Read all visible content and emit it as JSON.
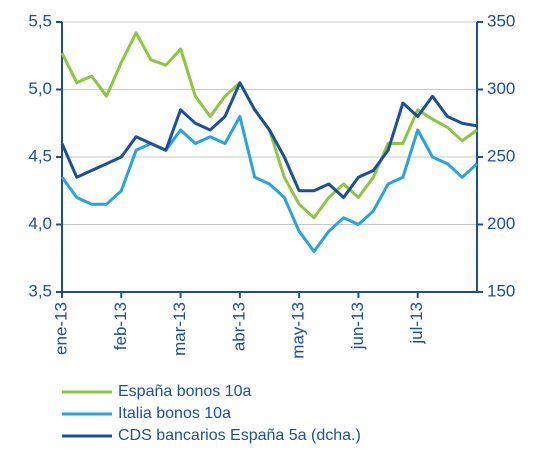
{
  "chart_data": {
    "type": "line",
    "categories": [
      "ene-13",
      null,
      null,
      null,
      "feb-13",
      null,
      null,
      null,
      "mar-13",
      null,
      null,
      null,
      "abr-13",
      null,
      null,
      null,
      "may-13",
      null,
      null,
      null,
      "jun-13",
      null,
      null,
      null,
      "jul-13",
      null,
      null,
      null,
      null
    ],
    "series": [
      {
        "name": "España bonos 10a",
        "color": "#8dc63f",
        "values": [
          5.27,
          5.05,
          5.1,
          4.95,
          5.2,
          5.42,
          5.22,
          5.18,
          5.3,
          4.95,
          4.8,
          4.95,
          5.05,
          4.85,
          4.7,
          4.35,
          4.15,
          4.05,
          4.2,
          4.3,
          4.2,
          4.35,
          4.6,
          4.6,
          4.85,
          4.78,
          4.72,
          4.62,
          4.7
        ]
      },
      {
        "name": "Italia bonos 10a",
        "color": "#29a3dd",
        "values": [
          4.35,
          4.2,
          4.15,
          4.15,
          4.25,
          4.55,
          4.6,
          4.55,
          4.7,
          4.6,
          4.65,
          4.6,
          4.8,
          4.35,
          4.3,
          4.2,
          3.95,
          3.8,
          3.95,
          4.05,
          4.0,
          4.1,
          4.3,
          4.35,
          4.7,
          4.5,
          4.45,
          4.35,
          4.45
        ]
      },
      {
        "name": "CDS bancarios España 5a (dcha.)",
        "color": "#1b4f9c",
        "axis": "y2",
        "values": [
          260,
          235,
          240,
          245,
          250,
          265,
          260,
          255,
          285,
          275,
          270,
          280,
          305,
          285,
          270,
          250,
          225,
          225,
          230,
          220,
          235,
          240,
          255,
          290,
          280,
          295,
          280,
          275,
          273
        ]
      }
    ],
    "ylim": [
      3.5,
      5.5
    ],
    "yticks": [
      {
        "value": 3.5,
        "label": "3,5"
      },
      {
        "value": 4.0,
        "label": "4,0"
      },
      {
        "value": 4.5,
        "label": "4,5"
      },
      {
        "value": 5.0,
        "label": "5,0"
      },
      {
        "value": 5.5,
        "label": "5,5"
      }
    ],
    "y2lim": [
      150,
      350
    ],
    "y2ticks": [
      150,
      200,
      250,
      300,
      350
    ],
    "grid": true
  }
}
